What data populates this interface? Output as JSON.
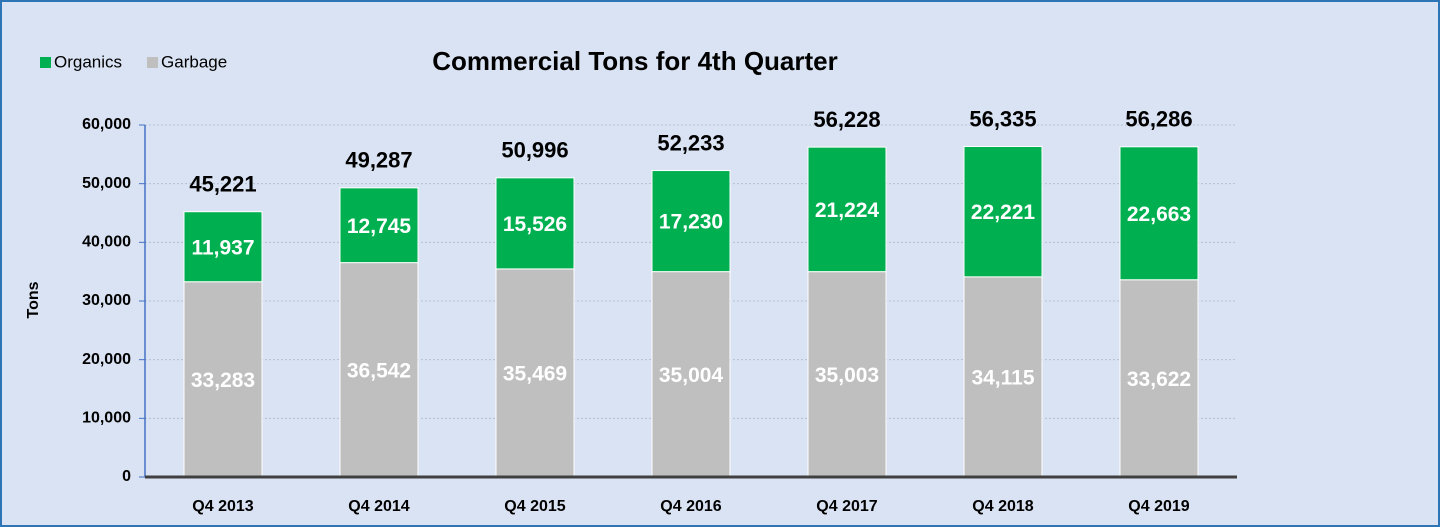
{
  "chart_data": {
    "type": "stacked_bar",
    "title": "Commercial Tons for 4th Quarter",
    "y_label": "Tons",
    "categories": [
      "Q4 2013",
      "Q4 2014",
      "Q4 2015",
      "Q4 2016",
      "Q4 2017",
      "Q4 2018",
      "Q4 2019"
    ],
    "series": [
      {
        "name": "Garbage",
        "color": "#bfbfbf",
        "values": [
          33283,
          36542,
          35469,
          35004,
          35003,
          34115,
          33622
        ],
        "value_labels": [
          "33,283",
          "36,542",
          "35,469",
          "35,004",
          "35,003",
          "34,115",
          "33,622"
        ]
      },
      {
        "name": "Organics",
        "color": "#00b050",
        "values": [
          11937,
          12745,
          15526,
          17230,
          21224,
          22221,
          22663
        ],
        "value_labels": [
          "11,937",
          "12,745",
          "15,526",
          "17,230",
          "21,224",
          "22,221",
          "22,663"
        ]
      }
    ],
    "totals": [
      45221,
      49287,
      50996,
      52233,
      56228,
      56335,
      56286
    ],
    "total_labels": [
      "45,221",
      "49,287",
      "50,996",
      "52,233",
      "56,228",
      "56,335",
      "56,286"
    ],
    "ylim": [
      0,
      60000
    ],
    "yticks": [
      0,
      {
        "value": 10000,
        "label": "10,000"
      },
      {
        "value": 20000,
        "label": "20,000"
      },
      {
        "value": 30000,
        "label": "30,000"
      },
      {
        "value": 40000,
        "label": "40,000"
      },
      {
        "value": 50000,
        "label": "50,000"
      },
      {
        "value": 60000,
        "label": "60,000"
      }
    ],
    "grid": true,
    "legend": "top-left"
  }
}
